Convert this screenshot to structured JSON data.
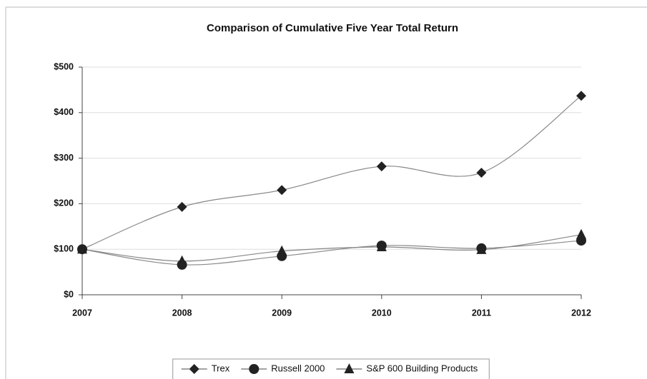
{
  "chart_data": {
    "type": "line",
    "title": "Comparison of Cumulative Five Year Total Return",
    "categories": [
      "2007",
      "2008",
      "2009",
      "2010",
      "2011",
      "2012"
    ],
    "series": [
      {
        "name": "Trex",
        "color": "#222222",
        "marker": "diamond",
        "values": [
          100,
          193,
          230,
          282,
          268,
          437
        ]
      },
      {
        "name": "Russell 2000",
        "color": "#222222",
        "marker": "circle",
        "values": [
          100,
          66,
          85,
          108,
          102,
          119
        ]
      },
      {
        "name": "S&P 600 Building Products",
        "color": "#222222",
        "marker": "triangle",
        "values": [
          100,
          74,
          96,
          105,
          99,
          132
        ]
      }
    ],
    "ylim": [
      0,
      500
    ],
    "yticks": [
      {
        "value": 0,
        "label": "$0"
      },
      {
        "value": 100,
        "label": "$100"
      },
      {
        "value": 200,
        "label": "$200"
      },
      {
        "value": 300,
        "label": "$300"
      },
      {
        "value": 400,
        "label": "$400"
      },
      {
        "value": 500,
        "label": "$500"
      }
    ],
    "grid": true,
    "legend": "bottom"
  }
}
